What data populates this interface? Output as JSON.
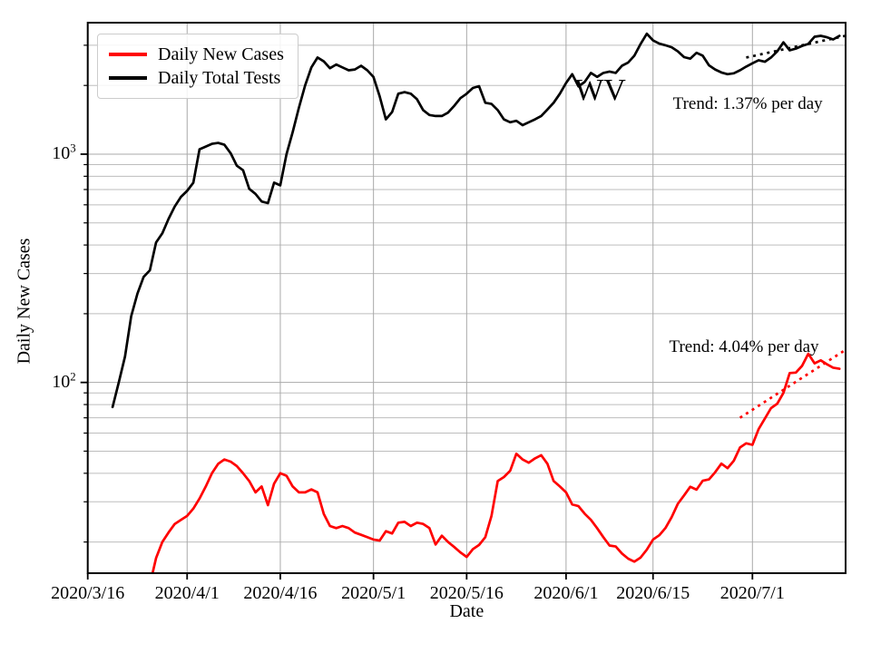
{
  "chart_data": {
    "type": "line",
    "title": "",
    "xlabel": "Date",
    "ylabel": "Daily New Cases",
    "yscale": "log",
    "ylim": [
      14.6,
      3767
    ],
    "xlim_days": [
      0,
      122
    ],
    "x_start_date": "2020/3/16",
    "grid": true,
    "legend_position": "upper left",
    "x_ticks": [
      {
        "day": 0,
        "label": "2020/3/16"
      },
      {
        "day": 16,
        "label": "2020/4/1"
      },
      {
        "day": 31,
        "label": "2020/4/16"
      },
      {
        "day": 46,
        "label": "2020/5/1"
      },
      {
        "day": 61,
        "label": "2020/5/16"
      },
      {
        "day": 77,
        "label": "2020/6/1"
      },
      {
        "day": 91,
        "label": "2020/6/15"
      },
      {
        "day": 107,
        "label": "2020/7/1"
      }
    ],
    "y_major_ticks": [
      {
        "value": 100,
        "mantissa": "10",
        "exponent": "2"
      },
      {
        "value": 1000,
        "mantissa": "10",
        "exponent": "3"
      }
    ],
    "y_minor_ticks": [
      20,
      30,
      40,
      50,
      60,
      70,
      80,
      90,
      200,
      300,
      400,
      500,
      600,
      700,
      800,
      900,
      2000,
      3000
    ],
    "colors": {
      "cases": "#ff0000",
      "tests": "#000000",
      "grid_minor": "#bdbdbd",
      "grid_major": "#a9a9a9"
    },
    "series": [
      {
        "name": "Daily New Cases",
        "color": "#ff0000",
        "start_day": 10,
        "start_date": "2020/3/26",
        "values": [
          13,
          17,
          20,
          22,
          24,
          25,
          26,
          28,
          31,
          35,
          40,
          44,
          46,
          45,
          43,
          40,
          37,
          33,
          35,
          29,
          36,
          40,
          39,
          35,
          33,
          33,
          34,
          33,
          26.5,
          23.5,
          23,
          23.5,
          23,
          22,
          21.5,
          21,
          20.5,
          20.3,
          22.3,
          21.8,
          24.3,
          24.5,
          23.5,
          24.3,
          24,
          23,
          19.5,
          21.3,
          20,
          19,
          18,
          17.2,
          18.6,
          19.4,
          21,
          26,
          37,
          38.5,
          41,
          48.7,
          46,
          44.5,
          46.5,
          48,
          44,
          37,
          35,
          33,
          29.2,
          28.7,
          26.6,
          25,
          23,
          21,
          19.3,
          19.1,
          17.8,
          16.9,
          16.4,
          17.1,
          18.5,
          20.5,
          21.4,
          23,
          25.7,
          29.4,
          32,
          34.9,
          33.9,
          37.1,
          37.6,
          40.4,
          44.1,
          42.1,
          45.4,
          51.9,
          54.1,
          53.3,
          62.4,
          69.4,
          77.2,
          80.7,
          90,
          110,
          110.5,
          118.3,
          133.6,
          121.3,
          125,
          120,
          116,
          114.8
        ]
      },
      {
        "name": "Daily Total Tests",
        "color": "#000000",
        "start_day": 4,
        "start_date": "2020/3/20",
        "values": [
          78,
          100,
          130,
          195,
          245,
          290,
          310,
          410,
          450,
          520,
          590,
          650,
          690,
          750,
          1050,
          1080,
          1110,
          1120,
          1100,
          1010,
          890,
          850,
          705,
          670,
          620,
          610,
          750,
          730,
          1000,
          1250,
          1600,
          2000,
          2400,
          2650,
          2550,
          2380,
          2470,
          2400,
          2330,
          2350,
          2440,
          2330,
          2180,
          1790,
          1420,
          1530,
          1840,
          1870,
          1840,
          1740,
          1560,
          1485,
          1470,
          1470,
          1520,
          1630,
          1760,
          1840,
          1950,
          1985,
          1680,
          1660,
          1560,
          1420,
          1380,
          1400,
          1340,
          1380,
          1420,
          1470,
          1570,
          1680,
          1840,
          2050,
          2240,
          1980,
          2070,
          2270,
          2180,
          2270,
          2300,
          2270,
          2440,
          2520,
          2700,
          3040,
          3370,
          3150,
          3050,
          3000,
          2940,
          2820,
          2660,
          2620,
          2780,
          2700,
          2450,
          2350,
          2280,
          2240,
          2260,
          2330,
          2420,
          2500,
          2580,
          2540,
          2650,
          2820,
          3090,
          2850,
          2900,
          2980,
          3040,
          3270,
          3300,
          3250,
          3180,
          3300
        ]
      }
    ],
    "trend_lines": [
      {
        "series": "Daily Total Tests",
        "label": "Trend: 1.37% per day",
        "rate_percent_per_day": 1.37,
        "color": "#000000",
        "start_day": 106,
        "start_value": 2650,
        "end_day": 122,
        "end_value": 3300,
        "label_day": 94.2,
        "label_value": 1650
      },
      {
        "series": "Daily New Cases",
        "label": "Trend: 4.04% per day",
        "rate_percent_per_day": 4.04,
        "color": "#ff0000",
        "start_day": 105,
        "start_value": 70,
        "end_day": 122,
        "end_value": 139,
        "label_day": 93.6,
        "label_value": 142
      }
    ],
    "annotations": [
      {
        "text": "WV",
        "day": 82.5,
        "value": 1900
      }
    ],
    "legend": {
      "items": [
        {
          "label": "Daily New Cases",
          "color": "#ff0000"
        },
        {
          "label": "Daily Total Tests",
          "color": "#000000"
        }
      ]
    }
  }
}
